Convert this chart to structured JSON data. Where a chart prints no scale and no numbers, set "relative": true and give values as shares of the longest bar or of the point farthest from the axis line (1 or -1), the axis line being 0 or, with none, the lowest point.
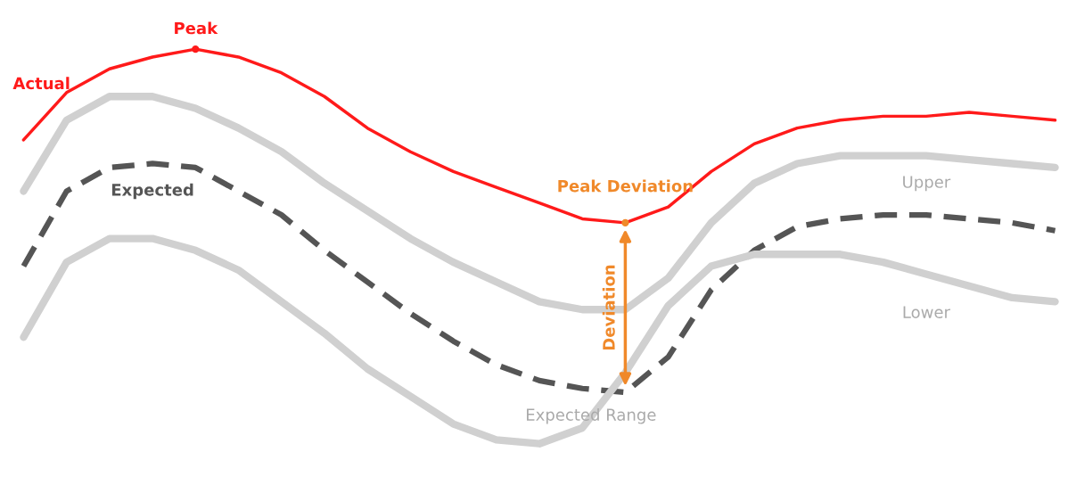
{
  "chart_data": {
    "type": "line",
    "relative": true,
    "categories": [
      null,
      null,
      null,
      null,
      null,
      null,
      null,
      null,
      null,
      null,
      null,
      null,
      null,
      null,
      null,
      null,
      null,
      null,
      null,
      null,
      null,
      null,
      null,
      null,
      null
    ],
    "series": [
      {
        "name": "Actual",
        "color": "#ff1a1a",
        "values": [
          0.77,
          0.89,
          0.95,
          0.98,
          1.0,
          0.98,
          0.94,
          0.88,
          0.8,
          0.74,
          0.69,
          0.65,
          0.61,
          0.57,
          0.56,
          0.6,
          0.69,
          0.76,
          0.8,
          0.82,
          0.83,
          0.83,
          0.84,
          0.83,
          0.82
        ]
      },
      {
        "name": "Upper",
        "color": "#d0d0d0",
        "values": [
          0.64,
          0.82,
          0.88,
          0.88,
          0.85,
          0.8,
          0.74,
          0.66,
          0.59,
          0.52,
          0.46,
          0.41,
          0.36,
          0.34,
          0.34,
          0.42,
          0.56,
          0.66,
          0.71,
          0.73,
          0.73,
          0.73,
          0.72,
          0.71,
          0.7
        ]
      },
      {
        "name": "Expected",
        "color": "#555555",
        "line_style": "dashed",
        "values": [
          0.45,
          0.64,
          0.7,
          0.71,
          0.7,
          0.64,
          0.58,
          0.49,
          0.41,
          0.33,
          0.26,
          0.2,
          0.16,
          0.14,
          0.13,
          0.22,
          0.39,
          0.49,
          0.55,
          0.57,
          0.58,
          0.58,
          0.57,
          0.56,
          0.54
        ]
      },
      {
        "name": "Lower",
        "color": "#d0d0d0",
        "values": [
          0.27,
          0.46,
          0.52,
          0.52,
          0.49,
          0.44,
          0.36,
          0.28,
          0.19,
          0.12,
          0.05,
          0.01,
          0.0,
          0.04,
          0.18,
          0.35,
          0.45,
          0.48,
          0.48,
          0.48,
          0.46,
          0.43,
          0.4,
          0.37,
          0.36
        ]
      }
    ],
    "annotations": [
      "Peak",
      "Peak Deviation",
      "Deviation",
      "Expected Range"
    ],
    "legend": false
  }
}
